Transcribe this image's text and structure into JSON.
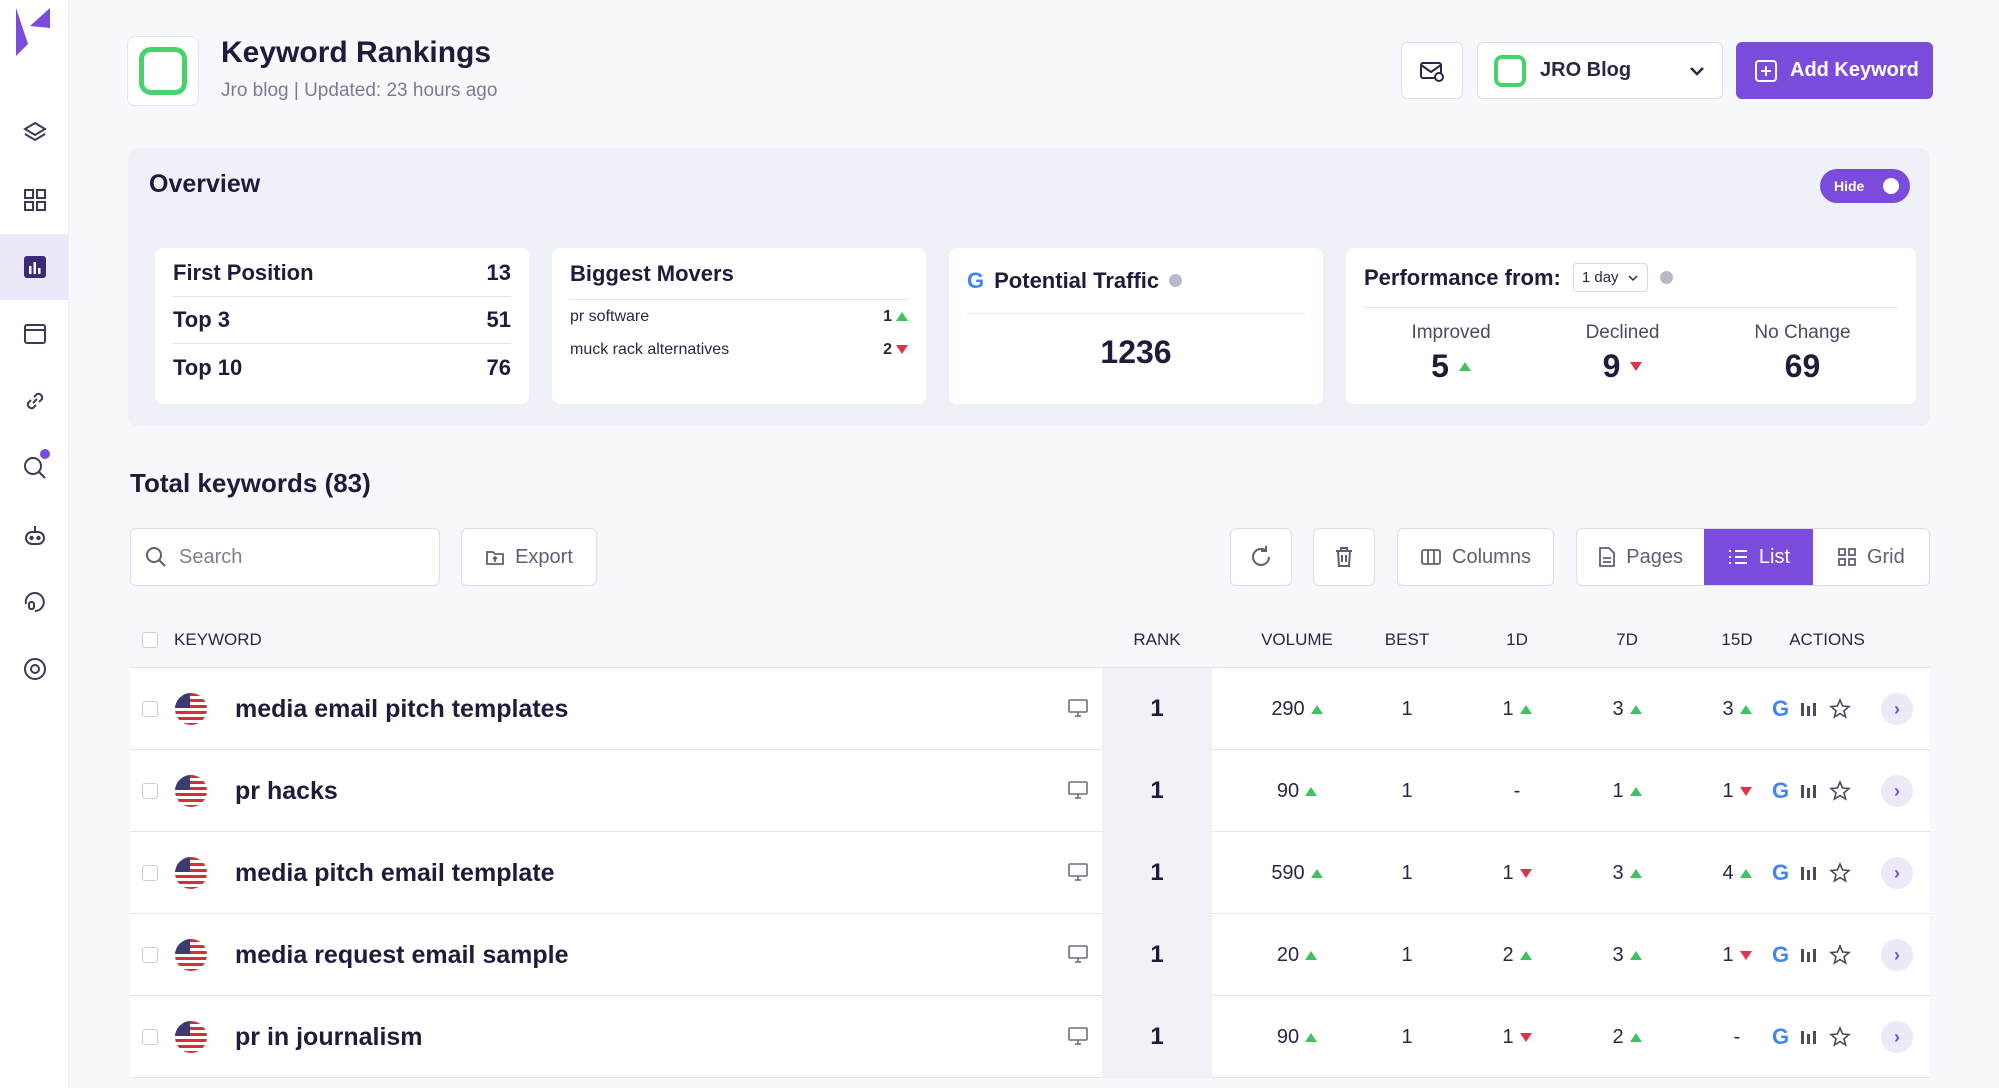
{
  "header": {
    "title": "Keyword Rankings",
    "subtitle": "Jro blog | Updated: 23 hours ago",
    "project_name": "JRO Blog",
    "add_keyword_label": "Add Keyword"
  },
  "overview": {
    "title": "Overview",
    "toggle_label": "Hide",
    "positions": [
      {
        "label": "First Position",
        "value": "13"
      },
      {
        "label": "Top 3",
        "value": "51"
      },
      {
        "label": "Top 10",
        "value": "76"
      }
    ],
    "movers": {
      "title": "Biggest Movers",
      "items": [
        {
          "keyword": "pr software",
          "value": "1",
          "direction": "up"
        },
        {
          "keyword": "muck rack alternatives",
          "value": "2",
          "direction": "down"
        }
      ]
    },
    "traffic": {
      "title": "Potential Traffic",
      "value": "1236"
    },
    "performance": {
      "title": "Performance from:",
      "period": "1 day",
      "improved_label": "Improved",
      "improved": "5",
      "declined_label": "Declined",
      "declined": "9",
      "nochange_label": "No Change",
      "nochange": "69"
    }
  },
  "keywords": {
    "title": "Total keywords (83)",
    "search_placeholder": "Search",
    "export_label": "Export",
    "columns_label": "Columns",
    "pages_label": "Pages",
    "list_label": "List",
    "grid_label": "Grid",
    "headers": {
      "keyword": "KEYWORD",
      "rank": "RANK",
      "volume": "VOLUME",
      "best": "BEST",
      "d1": "1D",
      "d7": "7D",
      "d15": "15D",
      "actions": "ACTIONS"
    },
    "rows": [
      {
        "keyword": "media email pitch templates",
        "rank": "1",
        "volume": "290",
        "vol_dir": "up",
        "best": "1",
        "d1": "1",
        "d1_dir": "up",
        "d7": "3",
        "d7_dir": "up",
        "d15": "3",
        "d15_dir": "up"
      },
      {
        "keyword": "pr hacks",
        "rank": "1",
        "volume": "90",
        "vol_dir": "up",
        "best": "1",
        "d1": "-",
        "d1_dir": "none",
        "d7": "1",
        "d7_dir": "up",
        "d15": "1",
        "d15_dir": "down"
      },
      {
        "keyword": "media pitch email template",
        "rank": "1",
        "volume": "590",
        "vol_dir": "up",
        "best": "1",
        "d1": "1",
        "d1_dir": "down",
        "d7": "3",
        "d7_dir": "up",
        "d15": "4",
        "d15_dir": "up"
      },
      {
        "keyword": "media request email sample",
        "rank": "1",
        "volume": "20",
        "vol_dir": "up",
        "best": "1",
        "d1": "2",
        "d1_dir": "up",
        "d7": "3",
        "d7_dir": "up",
        "d15": "1",
        "d15_dir": "down"
      },
      {
        "keyword": "pr in journalism",
        "rank": "1",
        "volume": "90",
        "vol_dir": "up",
        "best": "1",
        "d1": "1",
        "d1_dir": "down",
        "d7": "2",
        "d7_dir": "up",
        "d15": "-",
        "d15_dir": "none"
      }
    ]
  },
  "colors": {
    "accent": "#7b4cdb",
    "up": "#3fc25f",
    "down": "#e0324b",
    "project": "#45d46a"
  }
}
